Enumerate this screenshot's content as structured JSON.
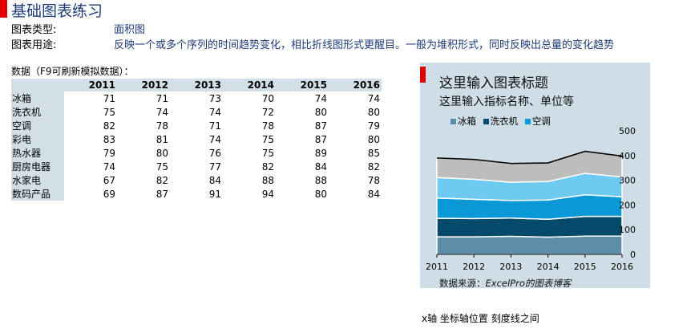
{
  "page": {
    "title": "基础图表练习",
    "type_label": "图表类型:",
    "type_value": "面积图",
    "use_label": "图表用途:",
    "use_value": "反映一个或多个序列的时间趋势变化，相比折线图形式更醒目。一般为堆积形式，同时反映出总量的变化趋势",
    "data_caption": "数据（F9可刷新模拟数据）：",
    "footnote": "x轴 坐标轴位置 刻度线之间"
  },
  "table": {
    "years": [
      "2011",
      "2012",
      "2013",
      "2014",
      "2015",
      "2016"
    ],
    "rows": [
      {
        "label": "冰箱",
        "values": [
          71,
          71,
          73,
          70,
          74,
          74
        ]
      },
      {
        "label": "洗衣机",
        "values": [
          75,
          74,
          74,
          72,
          80,
          80
        ]
      },
      {
        "label": "空调",
        "values": [
          82,
          78,
          71,
          78,
          87,
          79
        ]
      },
      {
        "label": "彩电",
        "values": [
          83,
          81,
          74,
          75,
          87,
          80
        ]
      },
      {
        "label": "热水器",
        "values": [
          79,
          80,
          76,
          75,
          89,
          85
        ]
      },
      {
        "label": "厨房电器",
        "values": [
          74,
          75,
          77,
          82,
          84,
          82
        ]
      },
      {
        "label": "水家电",
        "values": [
          67,
          82,
          84,
          88,
          88,
          78
        ]
      },
      {
        "label": "数码产品",
        "values": [
          69,
          87,
          91,
          94,
          80,
          84
        ]
      }
    ]
  },
  "chart_data": {
    "type": "area",
    "stacked": true,
    "title": "这里输入图表标题",
    "subtitle": "这里输入指标名称、单位等",
    "source": "数据来源：",
    "source_em": "ExcelPro的图表博客",
    "x": [
      "2011",
      "2012",
      "2013",
      "2014",
      "2015",
      "2016"
    ],
    "ylim": [
      0,
      500
    ],
    "yticks": [
      "0",
      "100",
      "200",
      "300",
      "400",
      "500"
    ],
    "y_axis_position": "right",
    "legend": [
      "冰箱",
      "洗衣机",
      "空调"
    ],
    "legend_position": "top",
    "series": [
      {
        "name": "冰箱",
        "values": [
          71,
          71,
          73,
          70,
          74,
          74
        ],
        "color": "#5b8fa8"
      },
      {
        "name": "洗衣机",
        "values": [
          75,
          74,
          74,
          72,
          80,
          80
        ],
        "color": "#044a6a"
      },
      {
        "name": "空调",
        "values": [
          82,
          78,
          71,
          78,
          87,
          79
        ],
        "color": "#0a98d6"
      },
      {
        "values": [
          83,
          81,
          74,
          75,
          87,
          80
        ],
        "color": "#6fcaf1"
      },
      {
        "values": [
          79,
          80,
          76,
          75,
          89,
          85
        ],
        "color": "#bdbdbd"
      }
    ],
    "total_line_color": "#000000"
  }
}
